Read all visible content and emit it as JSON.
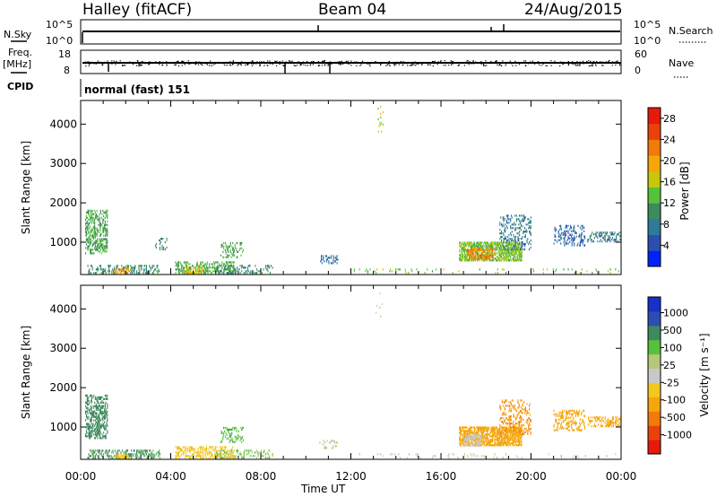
{
  "header": {
    "station": "Halley (fitACF)",
    "beam": "Beam 04",
    "date": "24/Aug/2015"
  },
  "strips": {
    "nsky_label": "N.Sky",
    "nsky_ticks": [
      "10^5",
      "10^0"
    ],
    "nsearch_label": "N.Search",
    "nsearch_ticks": [
      "10^5",
      "10^0"
    ],
    "freq_label": "Freq.",
    "freq_unit": "[MHz]",
    "freq_ticks": [
      "18",
      "8"
    ],
    "nave_label": "Nave",
    "nave_ticks": [
      "60",
      "0"
    ],
    "cpid_label": "CPID",
    "cpid_value": "normal (fast) 151"
  },
  "colors": {
    "power_scale": [
      "#0022ff",
      "#2a4fb0",
      "#2e7a9a",
      "#3d8a5e",
      "#56c23a",
      "#c8c80a",
      "#f5a60a",
      "#f27a0a",
      "#e8420a",
      "#e61a0a"
    ],
    "velocity_scale": [
      "#e61a0a",
      "#e8420a",
      "#f27a0a",
      "#f5a60a",
      "#f2c81e",
      "#c8c8c8",
      "#b4c878",
      "#56c23a",
      "#3d8a5e",
      "#2a4fb0",
      "#1a2fc8"
    ]
  },
  "chart_data": [
    {
      "type": "heatmap",
      "name": "power-panel",
      "xlabel": "Time UT",
      "ylabel": "Slant Range [km]",
      "xlim": [
        0,
        24
      ],
      "ylim": [
        180,
        4600
      ],
      "x_ticks": [
        "00:00",
        "04:00",
        "08:00",
        "12:00",
        "16:00",
        "20:00",
        "00:00"
      ],
      "y_ticks": [
        1000,
        2000,
        3000,
        4000
      ],
      "colorbar": {
        "label": "Power [dB]",
        "ticks": [
          "4",
          "8",
          "12",
          "16",
          "20",
          "24",
          "28"
        ],
        "range": [
          0,
          30
        ]
      },
      "regions": [
        {
          "t0": 0.2,
          "t1": 1.2,
          "r0": 700,
          "r1": 1800,
          "value": 12,
          "density": 0.45
        },
        {
          "t0": 0.3,
          "t1": 3.5,
          "r0": 200,
          "r1": 420,
          "value": 10,
          "density": 0.35
        },
        {
          "t0": 1.5,
          "t1": 2.2,
          "r0": 200,
          "r1": 330,
          "value": 20,
          "density": 0.55
        },
        {
          "t0": 4.2,
          "t1": 6.8,
          "r0": 200,
          "r1": 500,
          "value": 12,
          "density": 0.4
        },
        {
          "t0": 4.6,
          "t1": 5.4,
          "r0": 200,
          "r1": 380,
          "value": 18,
          "density": 0.5
        },
        {
          "t0": 6.0,
          "t1": 8.5,
          "r0": 200,
          "r1": 420,
          "value": 10,
          "density": 0.25
        },
        {
          "t0": 6.2,
          "t1": 7.2,
          "r0": 600,
          "r1": 1000,
          "value": 12,
          "density": 0.25
        },
        {
          "t0": 3.3,
          "t1": 3.8,
          "r0": 800,
          "r1": 1100,
          "value": 10,
          "density": 0.25
        },
        {
          "t0": 10.6,
          "t1": 11.4,
          "r0": 450,
          "r1": 650,
          "value": 6,
          "density": 0.25
        },
        {
          "t0": 16.8,
          "t1": 19.6,
          "r0": 520,
          "r1": 1000,
          "value": 14,
          "density": 0.7
        },
        {
          "t0": 17.2,
          "t1": 18.4,
          "r0": 550,
          "r1": 850,
          "value": 22,
          "density": 0.45
        },
        {
          "t0": 18.6,
          "t1": 20.0,
          "r0": 800,
          "r1": 1700,
          "value": 8,
          "density": 0.25
        },
        {
          "t0": 21.0,
          "t1": 22.4,
          "r0": 900,
          "r1": 1400,
          "value": 6,
          "density": 0.3
        },
        {
          "t0": 22.5,
          "t1": 24.0,
          "r0": 1000,
          "r1": 1250,
          "value": 8,
          "density": 0.35
        },
        {
          "t0": 13.1,
          "t1": 13.4,
          "r0": 3700,
          "r1": 4450,
          "value": 16,
          "density": 0.08
        },
        {
          "t0": 12.0,
          "t1": 24.0,
          "r0": 200,
          "r1": 300,
          "value": 14,
          "density": 0.06
        }
      ]
    },
    {
      "type": "heatmap",
      "name": "velocity-panel",
      "xlabel": "Time UT",
      "ylabel": "Slant Range [km]",
      "xlim": [
        0,
        24
      ],
      "ylim": [
        180,
        4600
      ],
      "x_ticks": [
        "00:00",
        "04:00",
        "08:00",
        "12:00",
        "16:00",
        "20:00",
        "00:00"
      ],
      "y_ticks": [
        1000,
        2000,
        3000,
        4000
      ],
      "colorbar": {
        "label": "Velocity [m s⁻¹]",
        "ticks": [
          "1000",
          "500",
          "100",
          "25",
          "-25",
          "-100",
          "-500",
          "-1000"
        ]
      },
      "regions": [
        {
          "t0": 0.2,
          "t1": 1.2,
          "r0": 700,
          "r1": 1800,
          "value": 150,
          "density": 0.45
        },
        {
          "t0": 0.3,
          "t1": 3.5,
          "r0": 200,
          "r1": 420,
          "value": 110,
          "density": 0.35
        },
        {
          "t0": 1.5,
          "t1": 2.2,
          "r0": 200,
          "r1": 330,
          "value": -60,
          "density": 0.5
        },
        {
          "t0": 4.2,
          "t1": 6.8,
          "r0": 200,
          "r1": 500,
          "value": -80,
          "density": 0.4
        },
        {
          "t0": 6.0,
          "t1": 8.5,
          "r0": 200,
          "r1": 420,
          "value": 60,
          "density": 0.25
        },
        {
          "t0": 6.2,
          "t1": 7.2,
          "r0": 600,
          "r1": 1000,
          "value": 90,
          "density": 0.25
        },
        {
          "t0": 10.6,
          "t1": 11.4,
          "r0": 450,
          "r1": 650,
          "value": 40,
          "density": 0.2
        },
        {
          "t0": 16.8,
          "t1": 19.6,
          "r0": 520,
          "r1": 1000,
          "value": -120,
          "density": 0.7
        },
        {
          "t0": 17.0,
          "t1": 17.8,
          "r0": 500,
          "r1": 800,
          "value": 0,
          "density": 0.45
        },
        {
          "t0": 18.6,
          "t1": 20.0,
          "r0": 800,
          "r1": 1700,
          "value": -300,
          "density": 0.25
        },
        {
          "t0": 21.0,
          "t1": 22.4,
          "r0": 900,
          "r1": 1400,
          "value": -250,
          "density": 0.3
        },
        {
          "t0": 22.5,
          "t1": 24.0,
          "r0": 1000,
          "r1": 1250,
          "value": -200,
          "density": 0.35
        },
        {
          "t0": 13.1,
          "t1": 13.4,
          "r0": 3700,
          "r1": 4450,
          "value": 30,
          "density": 0.08
        },
        {
          "t0": 12.0,
          "t1": 24.0,
          "r0": 200,
          "r1": 300,
          "value": 20,
          "density": 0.06
        }
      ]
    }
  ]
}
